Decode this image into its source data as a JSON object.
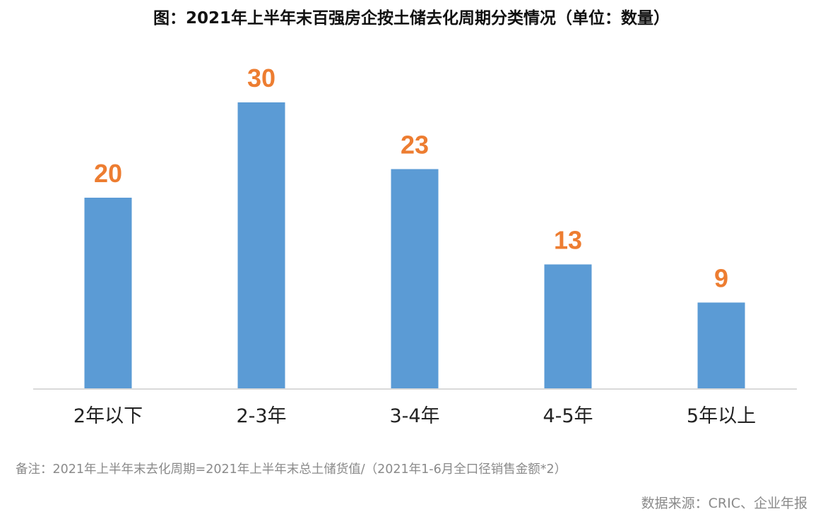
{
  "chart_data": {
    "type": "bar",
    "title": "图：2021年上半年末百强房企按土储去化周期分类情况（单位：数量）",
    "categories": [
      "2年以下",
      "2-3年",
      "3-4年",
      "4-5年",
      "5年以上"
    ],
    "values": [
      20,
      30,
      23,
      13,
      9
    ],
    "xlabel": "",
    "ylabel": "",
    "ylim": [
      0,
      30
    ],
    "grid": false,
    "legend": "none",
    "colors": {
      "bar": "#5b9bd5",
      "value_label": "#ed7d31",
      "axis": "#d9d9d9"
    }
  },
  "footer": {
    "note": "备注：2021年上半年末去化周期=2021年上半年末总土储货值/（2021年1-6月全口径销售金额*2）",
    "source": "数据来源：CRIC、企业年报"
  }
}
